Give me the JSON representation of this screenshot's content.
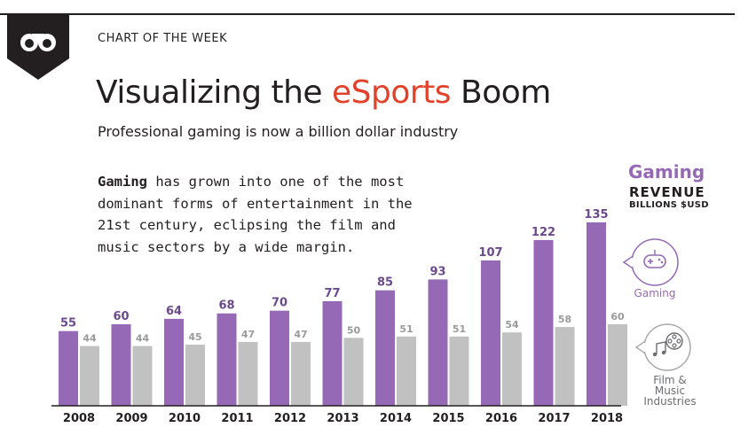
{
  "header": {
    "kicker": "CHART OF THE WEEK",
    "title_prefix": "Visualizing the ",
    "title_accent": "eSports",
    "title_suffix": " Boom",
    "subtitle": "Professional gaming is now a billion dollar industry"
  },
  "intro": {
    "bold": "Gaming",
    "rest": " has grown into one of the most dominant forms of entertainment in the 21st century, eclipsing the film and music sectors by a wide margin."
  },
  "legend": {
    "series_title": "Gaming",
    "revenue": "REVENUE",
    "unit": "BILLIONS $USD",
    "gaming_label": "Gaming",
    "film_label_lines": [
      "Film &",
      "Music",
      "Industries"
    ]
  },
  "colors": {
    "gaming": "#9569b5",
    "film": "#c1c1c1",
    "accent": "#e2412a",
    "text": "#231f20"
  },
  "chart_data": {
    "type": "bar",
    "title": "Revenue (Billions $USD)",
    "categories": [
      "2008",
      "2009",
      "2010",
      "2011",
      "2012",
      "2013",
      "2014",
      "2015",
      "2016",
      "2017",
      "2018"
    ],
    "series": [
      {
        "name": "Gaming",
        "values": [
          55,
          60,
          64,
          68,
          70,
          77,
          85,
          93,
          107,
          122,
          135
        ]
      },
      {
        "name": "Film & Music Industries",
        "values": [
          44,
          44,
          45,
          47,
          47,
          50,
          51,
          51,
          54,
          58,
          60
        ]
      }
    ],
    "ylim": [
      0,
      135
    ],
    "xlabel": "",
    "ylabel": "Revenue (Billions $USD)"
  }
}
